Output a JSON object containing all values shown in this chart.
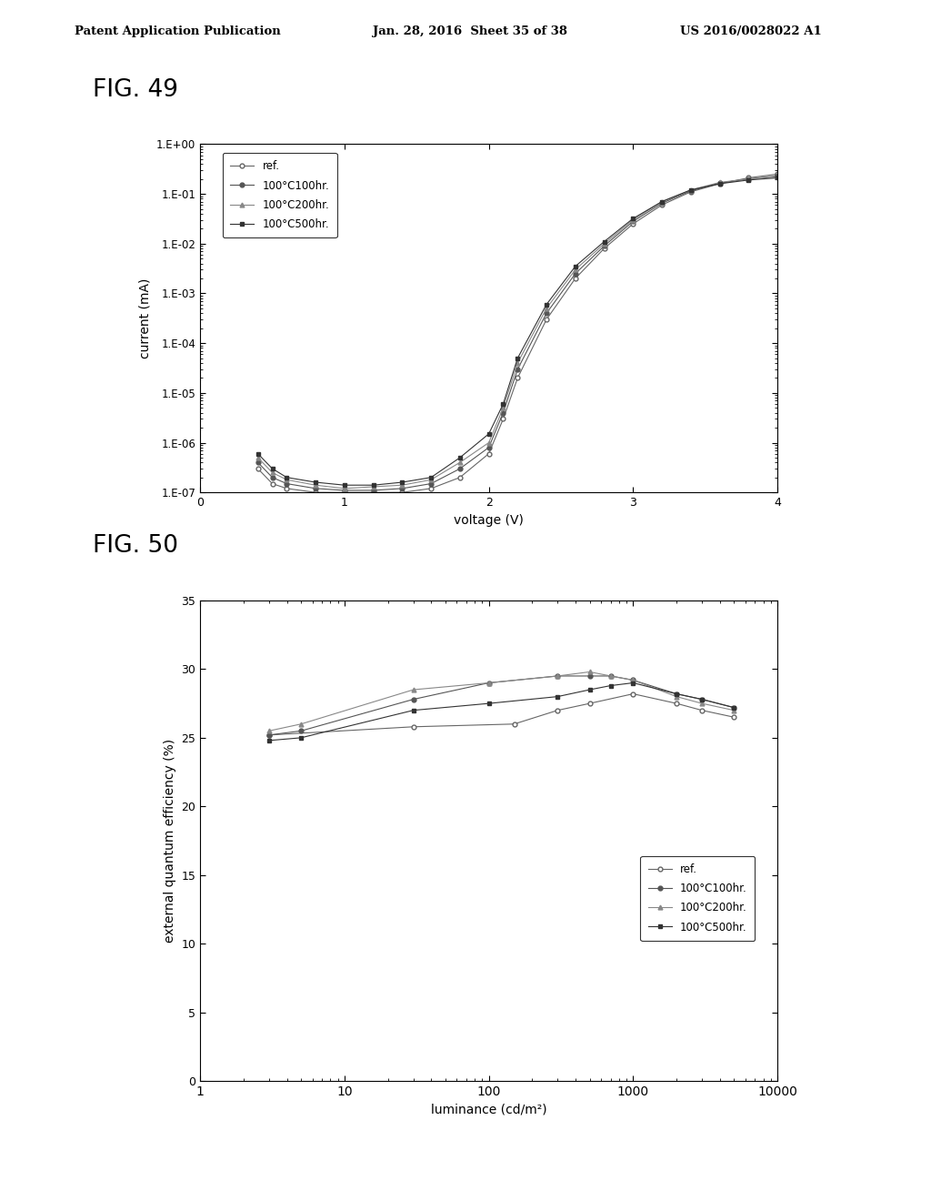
{
  "fig49_title": "FIG. 49",
  "fig50_title": "FIG. 50",
  "header_left": "Patent Application Publication",
  "header_mid": "Jan. 28, 2016  Sheet 35 of 38",
  "header_right": "US 2016/0028022 A1",
  "legend_labels": [
    "ref.",
    "100°C100hr.",
    "100°C200hr.",
    "100°C500hr."
  ],
  "fig49_xlabel": "voltage (V)",
  "fig49_ylabel": "current (mA)",
  "fig49_xlim": [
    0,
    4
  ],
  "fig49_yticks": [
    "1.E-07",
    "1.E-06",
    "1.E-05",
    "1.E-04",
    "1.E-03",
    "1.E-02",
    "1.E-01",
    "1.E+00"
  ],
  "fig49_ytick_vals": [
    1e-07,
    1e-06,
    1e-05,
    0.0001,
    0.001,
    0.01,
    0.1,
    1.0
  ],
  "fig50_xlabel": "luminance (cd/m²)",
  "fig50_ylabel": "external quantum efficiency (%)",
  "fig50_ylim": [
    0,
    35
  ],
  "fig50_yticks": [
    0,
    5,
    10,
    15,
    20,
    25,
    30,
    35
  ],
  "ref_v": [
    0.4,
    0.5,
    0.6,
    0.8,
    1.0,
    1.2,
    1.4,
    1.6,
    1.8,
    2.0,
    2.1,
    2.2,
    2.4,
    2.6,
    2.8,
    3.0,
    3.2,
    3.4,
    3.6,
    3.8,
    4.0
  ],
  "ref_i": [
    3e-07,
    1.5e-07,
    1.2e-07,
    1e-07,
    1e-07,
    1e-07,
    1e-07,
    1.2e-07,
    2e-07,
    6e-07,
    3e-06,
    2e-05,
    0.0003,
    0.002,
    0.008,
    0.025,
    0.06,
    0.11,
    0.16,
    0.21,
    0.25
  ],
  "c100_v": [
    0.4,
    0.5,
    0.6,
    0.8,
    1.0,
    1.2,
    1.4,
    1.6,
    1.8,
    2.0,
    2.1,
    2.2,
    2.4,
    2.6,
    2.8,
    3.0,
    3.2,
    3.4,
    3.6,
    3.8,
    4.0
  ],
  "c100_i": [
    4e-07,
    2e-07,
    1.5e-07,
    1.2e-07,
    1.1e-07,
    1.1e-07,
    1.2e-07,
    1.5e-07,
    3e-07,
    8e-07,
    4e-06,
    3e-05,
    0.0004,
    0.0025,
    0.009,
    0.028,
    0.065,
    0.115,
    0.165,
    0.2,
    0.23
  ],
  "c200_v": [
    0.4,
    0.5,
    0.6,
    0.8,
    1.0,
    1.2,
    1.4,
    1.6,
    1.8,
    2.0,
    2.1,
    2.2,
    2.4,
    2.6,
    2.8,
    3.0,
    3.2,
    3.4,
    3.6,
    3.8,
    4.0
  ],
  "c200_i": [
    5e-07,
    2.5e-07,
    1.8e-07,
    1.4e-07,
    1.2e-07,
    1.3e-07,
    1.4e-07,
    1.8e-07,
    4e-07,
    1e-06,
    5e-06,
    4e-05,
    0.0005,
    0.003,
    0.01,
    0.03,
    0.07,
    0.12,
    0.17,
    0.2,
    0.22
  ],
  "c500_v": [
    0.4,
    0.5,
    0.6,
    0.8,
    1.0,
    1.2,
    1.4,
    1.6,
    1.8,
    2.0,
    2.1,
    2.2,
    2.4,
    2.6,
    2.8,
    3.0,
    3.2,
    3.4,
    3.6,
    3.8,
    4.0
  ],
  "c500_i": [
    6e-07,
    3e-07,
    2e-07,
    1.6e-07,
    1.4e-07,
    1.4e-07,
    1.6e-07,
    2e-07,
    5e-07,
    1.5e-06,
    6e-06,
    5e-05,
    0.0006,
    0.0035,
    0.011,
    0.032,
    0.07,
    0.12,
    0.16,
    0.19,
    0.21
  ],
  "ref_lum": [
    3,
    30,
    150,
    300,
    500,
    1000,
    2000,
    3000,
    5000
  ],
  "ref_eqe": [
    25.2,
    25.8,
    26.0,
    27.0,
    27.5,
    28.2,
    27.5,
    27.0,
    26.5
  ],
  "c100_lum": [
    3,
    5,
    30,
    100,
    300,
    500,
    700,
    1000,
    2000,
    3000,
    5000
  ],
  "c100_eqe": [
    25.2,
    25.5,
    27.8,
    29.0,
    29.5,
    29.5,
    29.5,
    29.2,
    28.2,
    27.8,
    27.2
  ],
  "c200_lum": [
    3,
    5,
    30,
    100,
    300,
    500,
    700,
    1000,
    2000,
    3000,
    5000
  ],
  "c200_eqe": [
    25.5,
    26.0,
    28.5,
    29.0,
    29.5,
    29.8,
    29.5,
    29.2,
    28.0,
    27.5,
    27.0
  ],
  "c500_lum": [
    3,
    5,
    30,
    100,
    300,
    500,
    700,
    1000,
    2000,
    3000,
    5000
  ],
  "c500_eqe": [
    24.8,
    25.0,
    27.0,
    27.5,
    28.0,
    28.5,
    28.8,
    29.0,
    28.2,
    27.8,
    27.2
  ]
}
